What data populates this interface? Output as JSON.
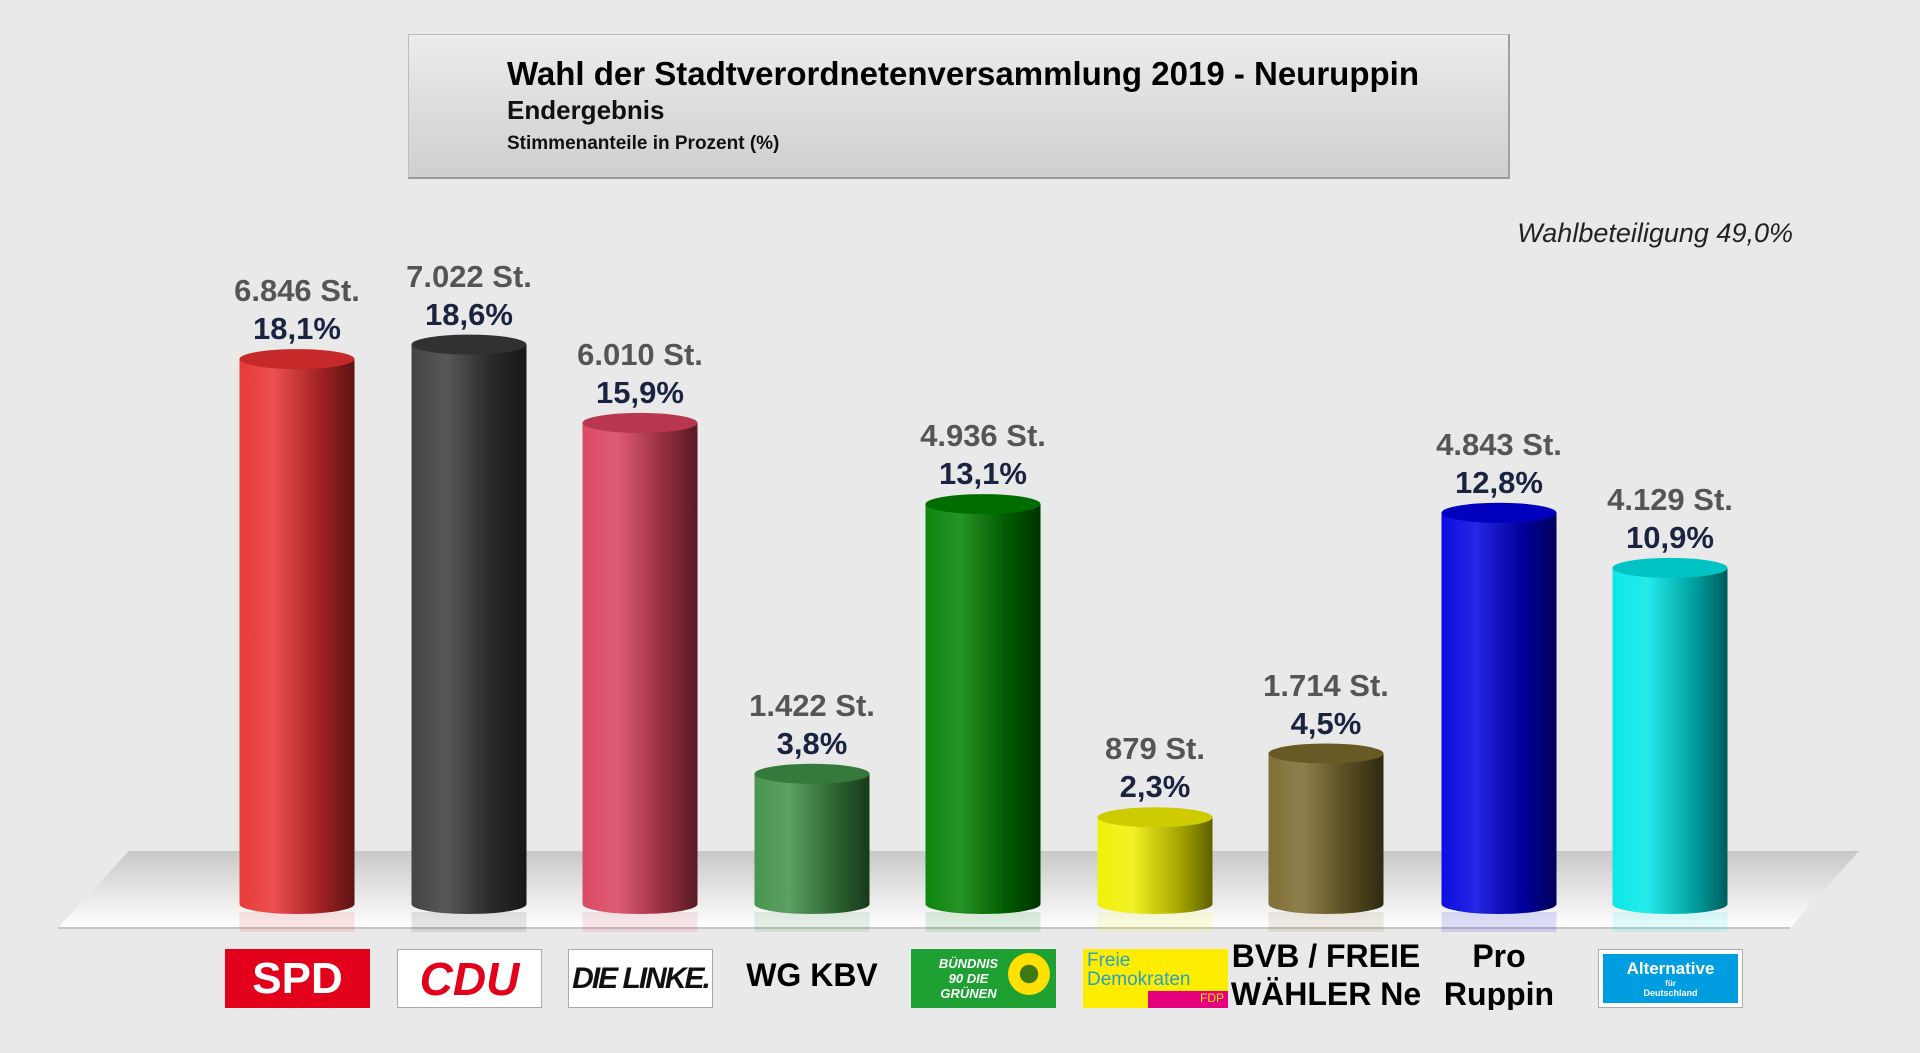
{
  "header": {
    "title": "Wahl der Stadtverordnetenversammlung 2019 - Neuruppin",
    "subtitle": "Endergebnis",
    "note": "Stimmenanteile in Prozent (%)"
  },
  "turnout": "Wahlbeteiligung 49,0%",
  "chart_data": {
    "type": "bar",
    "title": "Wahl der Stadtverordnetenversammlung 2019 - Neuruppin",
    "ylabel": "Stimmenanteile in Prozent (%)",
    "categories": [
      "SPD",
      "CDU",
      "DIE LINKE.",
      "WG KBV",
      "BÜNDNIS 90 DIE GRÜNEN",
      "Freie Demokraten FDP",
      "BVB / FREIE WÄHLER Ne",
      "Pro Ruppin",
      "Alternative für Deutschland"
    ],
    "values": [
      18.1,
      18.6,
      15.9,
      3.8,
      13.1,
      2.3,
      4.5,
      12.8,
      10.9
    ],
    "value_labels": [
      "18,1%",
      "18,6%",
      "15,9%",
      "3,8%",
      "13,1%",
      "2,3%",
      "4,5%",
      "12,8%",
      "10,9%"
    ],
    "votes": [
      "6.846 St.",
      "7.022 St.",
      "6.010 St.",
      "1.422 St.",
      "4.936 St.",
      "879 St.",
      "1.714 St.",
      "4.843 St.",
      "4.129 St."
    ],
    "colors": [
      "#e83030",
      "#3a3a3a",
      "#d8405c",
      "#3f8f45",
      "#008000",
      "#f0f000",
      "#7a6a2c",
      "#0000e0",
      "#00e6e6"
    ],
    "grid": false,
    "legend": "none"
  },
  "logos": {
    "spd": "SPD",
    "cdu": "CDU",
    "linke": "DIE LINKE.",
    "wg": "WG KBV",
    "gruene": "BÜNDNIS 90 DIE GRÜNEN",
    "fdp_top": "Freie Demokraten",
    "fdp_bottom": "FDP",
    "bvb": "BVB / FREIE WÄHLER Ne",
    "pro": "Pro Ruppin",
    "afd_top": "Alternative",
    "afd_small": "für",
    "afd_bottom": "Deutschland"
  }
}
